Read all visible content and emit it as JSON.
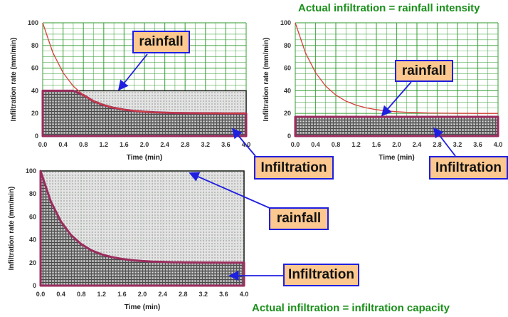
{
  "captions": {
    "top_right": "Actual infiltration = rainfall intensity",
    "bottom": "Actual infiltration = infiltration capacity"
  },
  "callouts": {
    "rainfall": "rainfall",
    "infiltration": "Infiltration"
  },
  "colors": {
    "capacity_curve": "#d9403a",
    "infiltration_outline": "#9b2c5e",
    "rainfall_outline": "#111111",
    "grid": "#2e9a2e",
    "arrow": "#1f1fe0",
    "callout_fill": "#fcc88f",
    "caption": "#1a8f1a"
  },
  "chart_data": [
    {
      "type": "area",
      "xlabel": "Time (min)",
      "ylabel": "Infiltration rate (mm/min)",
      "xlim": [
        0,
        4.0
      ],
      "ylim": [
        0,
        100
      ],
      "xticks": [
        "0.0",
        "0.4",
        "0.8",
        "1.2",
        "1.6",
        "2.0",
        "2.4",
        "2.8",
        "3.2",
        "3.6",
        "4.0"
      ],
      "yticks": [
        "0",
        "20",
        "40",
        "60",
        "80",
        "100"
      ],
      "grid": true,
      "rainfall_intensity": 40,
      "capacity_curve": {
        "t": [
          0,
          0.2,
          0.4,
          0.6,
          0.8,
          1.0,
          1.2,
          1.4,
          1.6,
          1.8,
          2.0,
          2.2,
          2.4,
          2.6,
          2.8,
          3.0,
          3.2,
          3.4,
          3.6,
          3.8,
          4.0
        ],
        "f": [
          100,
          73.6,
          56.0,
          44.1,
          36.2,
          30.8,
          27.3,
          24.9,
          23.3,
          22.2,
          21.5,
          21.0,
          20.7,
          20.4,
          20.3,
          20.2,
          20.1,
          20.1,
          20.0,
          20.0,
          20.0
        ]
      }
    },
    {
      "type": "area",
      "xlabel": "Time (min)",
      "ylabel": "Infiltration rate (mm/min)",
      "xlim": [
        0,
        4.0
      ],
      "ylim": [
        0,
        100
      ],
      "xticks": [
        "0.0",
        "0.4",
        "0.8",
        "1.2",
        "1.6",
        "2.0",
        "2.4",
        "2.8",
        "3.2",
        "3.6",
        "4.0"
      ],
      "yticks": [
        "0",
        "20",
        "40",
        "60",
        "80",
        "100"
      ],
      "grid": true,
      "rainfall_intensity": 17,
      "capacity_curve": {
        "t": [
          0,
          0.2,
          0.4,
          0.6,
          0.8,
          1.0,
          1.2,
          1.4,
          1.6,
          1.8,
          2.0,
          2.2,
          2.4,
          2.6,
          2.8,
          3.0,
          3.2,
          3.4,
          3.6,
          3.8,
          4.0
        ],
        "f": [
          100,
          73.6,
          56.0,
          44.1,
          36.2,
          30.8,
          27.3,
          24.9,
          23.3,
          22.2,
          21.5,
          21.0,
          20.7,
          20.4,
          20.3,
          20.2,
          20.1,
          20.1,
          20.0,
          20.0,
          20.0
        ]
      }
    },
    {
      "type": "area",
      "xlabel": "Time (min)",
      "ylabel": "Infiltration rate (mm/min)",
      "xlim": [
        0,
        4.0
      ],
      "ylim": [
        0,
        100
      ],
      "xticks": [
        "0.0",
        "0.4",
        "0.8",
        "1.2",
        "1.6",
        "2.0",
        "2.4",
        "2.8",
        "3.2",
        "3.6",
        "4.0"
      ],
      "yticks": [
        "0",
        "20",
        "40",
        "60",
        "80",
        "100"
      ],
      "grid": true,
      "rainfall_intensity": 100,
      "capacity_curve": {
        "t": [
          0,
          0.2,
          0.4,
          0.6,
          0.8,
          1.0,
          1.2,
          1.4,
          1.6,
          1.8,
          2.0,
          2.2,
          2.4,
          2.6,
          2.8,
          3.0,
          3.2,
          3.4,
          3.6,
          3.8,
          4.0
        ],
        "f": [
          100,
          73.6,
          56.0,
          44.1,
          36.2,
          30.8,
          27.3,
          24.9,
          23.3,
          22.2,
          21.5,
          21.0,
          20.7,
          20.4,
          20.3,
          20.2,
          20.1,
          20.1,
          20.0,
          20.0,
          20.0
        ]
      }
    }
  ]
}
